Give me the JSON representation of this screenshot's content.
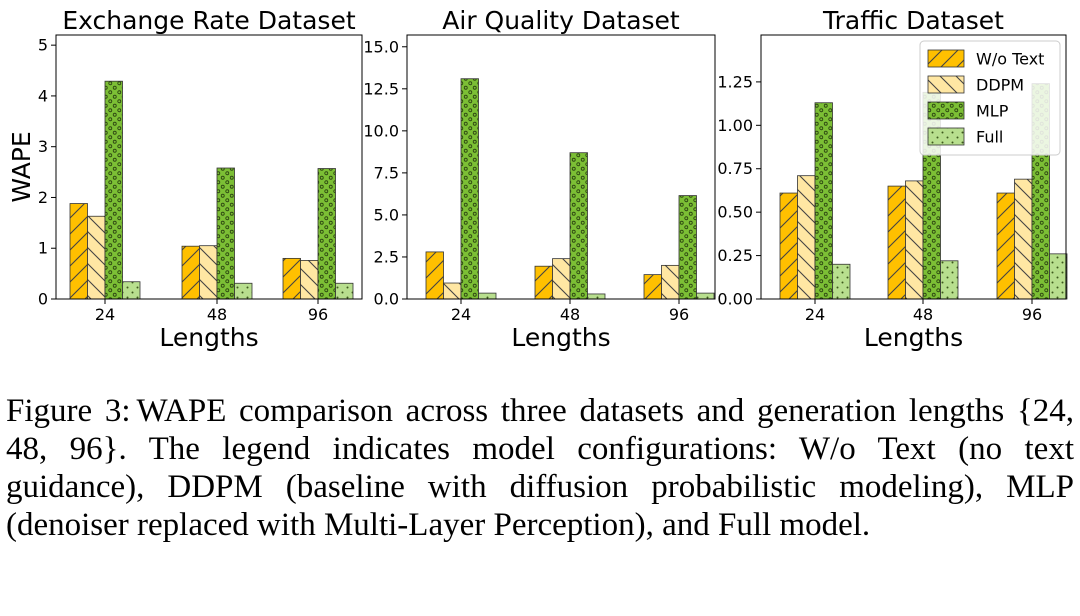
{
  "colors": {
    "w_o_text": "#ffc000",
    "ddpm": "#ffe7a3",
    "mlp": "#7cbf35",
    "full": "#b8df8e",
    "edge": "#333333"
  },
  "legend": {
    "placement": "top-right (third panel)",
    "entries": [
      "W/o Text",
      "DDPM",
      "MLP",
      "Full"
    ]
  },
  "chart_data": [
    {
      "type": "bar",
      "title": "Exchange Rate Dataset",
      "xlabel": "Lengths",
      "ylabel": "WAPE",
      "categories": [
        "24",
        "48",
        "96"
      ],
      "ylim": [
        0,
        5.2
      ],
      "yticks": [
        0,
        1,
        2,
        3,
        4,
        5
      ],
      "ytick_labels": [
        "0",
        "1",
        "2",
        "3",
        "4",
        "5"
      ],
      "series": [
        {
          "name": "W/o Text",
          "values": [
            1.88,
            1.04,
            0.8
          ]
        },
        {
          "name": "DDPM",
          "values": [
            1.63,
            1.05,
            0.76
          ]
        },
        {
          "name": "MLP",
          "values": [
            4.29,
            2.58,
            2.57
          ]
        },
        {
          "name": "Full",
          "values": [
            0.34,
            0.31,
            0.31
          ]
        }
      ]
    },
    {
      "type": "bar",
      "title": "Air Quality Dataset",
      "xlabel": "Lengths",
      "ylabel": "",
      "categories": [
        "24",
        "48",
        "96"
      ],
      "ylim": [
        0,
        15.7
      ],
      "yticks": [
        0,
        2.5,
        5,
        7.5,
        10,
        12.5,
        15
      ],
      "ytick_labels": [
        "0.0",
        "2.5",
        "5.0",
        "7.5",
        "10.0",
        "12.5",
        "15.0"
      ],
      "series": [
        {
          "name": "W/o Text",
          "values": [
            2.8,
            1.95,
            1.45
          ]
        },
        {
          "name": "DDPM",
          "values": [
            0.95,
            2.4,
            2.0
          ]
        },
        {
          "name": "MLP",
          "values": [
            13.1,
            8.7,
            6.15
          ]
        },
        {
          "name": "Full",
          "values": [
            0.35,
            0.3,
            0.35
          ]
        }
      ]
    },
    {
      "type": "bar",
      "title": "Traffic Dataset",
      "xlabel": "Lengths",
      "ylabel": "",
      "categories": [
        "24",
        "48",
        "96"
      ],
      "ylim": [
        0,
        1.52
      ],
      "yticks": [
        0,
        0.25,
        0.5,
        0.75,
        1.0,
        1.25
      ],
      "ytick_labels": [
        "0.00",
        "0.25",
        "0.50",
        "0.75",
        "1.00",
        "1.25"
      ],
      "series": [
        {
          "name": "W/o Text",
          "values": [
            0.61,
            0.65,
            0.61
          ]
        },
        {
          "name": "DDPM",
          "values": [
            0.71,
            0.68,
            0.69
          ]
        },
        {
          "name": "MLP",
          "values": [
            1.13,
            1.19,
            1.24
          ]
        },
        {
          "name": "Full",
          "values": [
            0.2,
            0.22,
            0.26
          ]
        }
      ]
    }
  ],
  "caption": {
    "label": "Figure 3:",
    "text": "WAPE comparison across three datasets and generation lengths {24, 48, 96}. The legend indicates model configurations: W/o Text (no text guidance), DDPM (baseline with diffusion probabilistic modeling), MLP (denoiser replaced with Multi-Layer Perception), and Full model."
  }
}
